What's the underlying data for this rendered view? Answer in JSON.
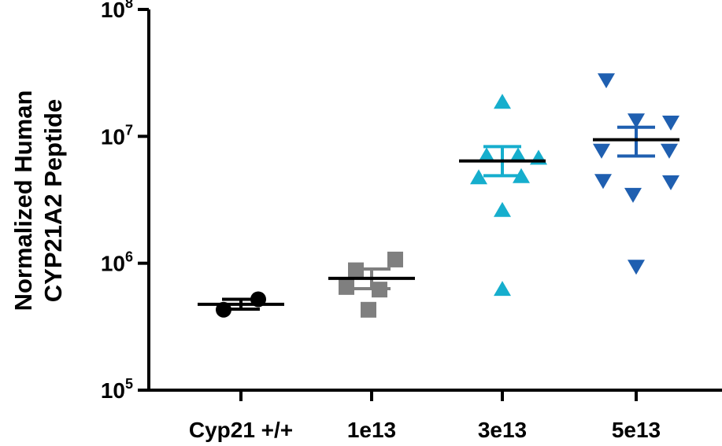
{
  "chart_data": {
    "type": "scatter",
    "title": "",
    "xlabel": "",
    "ylabel_lines": [
      "Normalized Human",
      "CYP21A2 Peptide"
    ],
    "y_scale": "log",
    "ylim": [
      100000,
      100000000
    ],
    "y_ticks": [
      {
        "value": 100000,
        "base": "10",
        "exp": "5"
      },
      {
        "value": 1000000,
        "base": "10",
        "exp": "6"
      },
      {
        "value": 10000000,
        "base": "10",
        "exp": "7"
      },
      {
        "value": 100000000,
        "base": "10",
        "exp": "8"
      }
    ],
    "categories": [
      "Cyp21 +/+",
      "1e13",
      "3e13",
      "5e13"
    ],
    "groups": [
      {
        "category": "Cyp21 +/+",
        "color": "#000000",
        "marker": "circle",
        "points": [
          430000,
          520000
        ],
        "mean": 475000,
        "sem": [
          435000,
          520000
        ]
      },
      {
        "category": "1e13",
        "color": "#7f7f7f",
        "marker": "square",
        "points": [
          1070000,
          880000,
          620000,
          430000,
          650000
        ],
        "mean": 760000,
        "sem": [
          630000,
          900000
        ]
      },
      {
        "category": "3e13",
        "color": "#16aecd",
        "marker": "triangle-up",
        "points": [
          18500000,
          7000000,
          7000000,
          6700000,
          4700000,
          4800000,
          2600000,
          620000
        ],
        "mean": 6400000,
        "sem": [
          4900000,
          8300000
        ]
      },
      {
        "category": "5e13",
        "color": "#1f5fb0",
        "marker": "triangle-down",
        "points": [
          28000000,
          13500000,
          13000000,
          7800000,
          7800000,
          4500000,
          4400000,
          3500000,
          950000
        ],
        "mean": 9400000,
        "sem": [
          7000000,
          11800000
        ]
      }
    ]
  }
}
